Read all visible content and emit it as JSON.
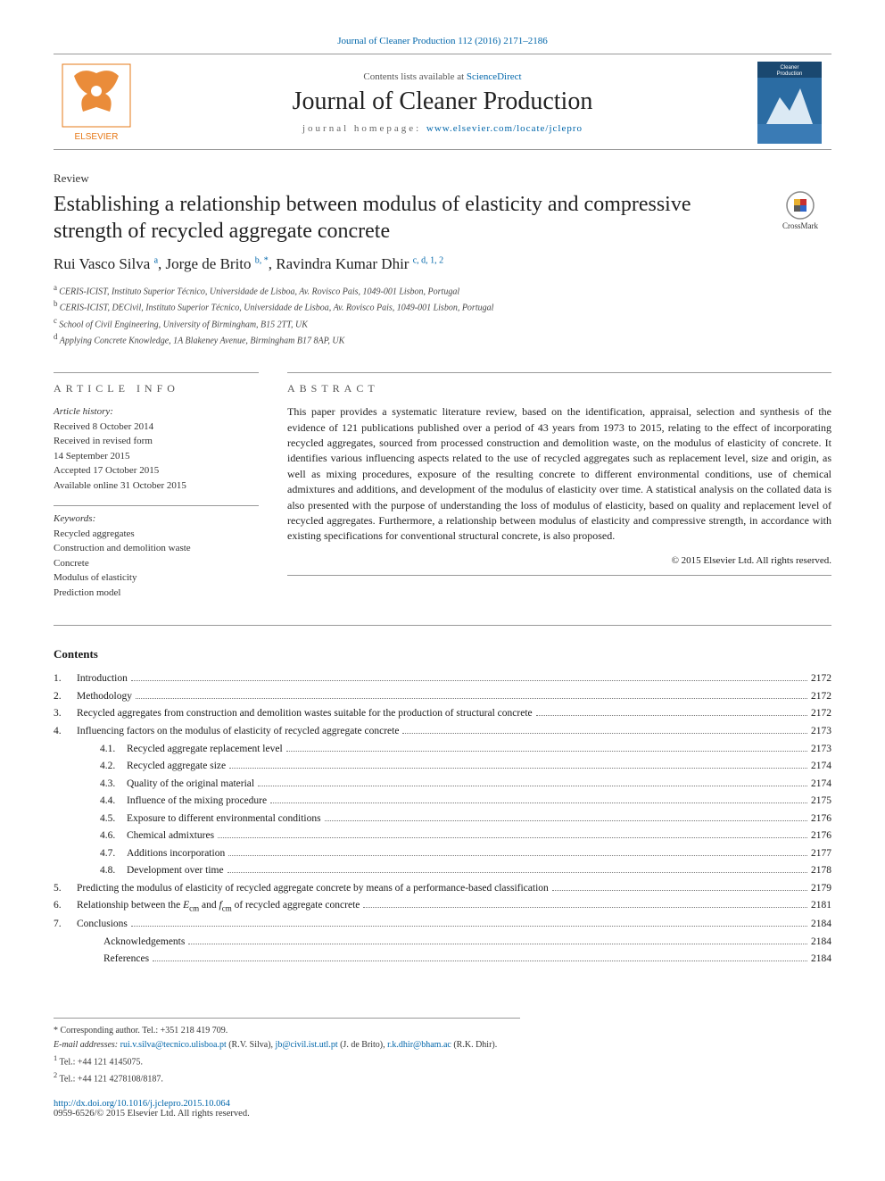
{
  "journal_ref": "Journal of Cleaner Production 112 (2016) 2171–2186",
  "masthead": {
    "sd_prefix": "Contents lists available at ",
    "sd_link": "ScienceDirect",
    "journal_title": "Journal of Cleaner Production",
    "homepage_label": "journal homepage: ",
    "homepage_url": "www.elsevier.com/locate/jclepro",
    "publisher": "ELSEVIER"
  },
  "article_type": "Review",
  "title": "Establishing a relationship between modulus of elasticity and compressive strength of recycled aggregate concrete",
  "crossmark_label": "CrossMark",
  "authors": [
    {
      "name": "Rui Vasco Silva",
      "sup": "a"
    },
    {
      "name": "Jorge de Brito",
      "sup": "b, *"
    },
    {
      "name": "Ravindra Kumar Dhir",
      "sup": "c, d, 1, 2"
    }
  ],
  "affiliations": [
    {
      "sup": "a",
      "text": "CERIS-ICIST, Instituto Superior Técnico, Universidade de Lisboa, Av. Rovisco Pais, 1049-001 Lisbon, Portugal"
    },
    {
      "sup": "b",
      "text": "CERIS-ICIST, DECivil, Instituto Superior Técnico, Universidade de Lisboa, Av. Rovisco Pais, 1049-001 Lisbon, Portugal"
    },
    {
      "sup": "c",
      "text": "School of Civil Engineering, University of Birmingham, B15 2TT, UK"
    },
    {
      "sup": "d",
      "text": "Applying Concrete Knowledge, 1A Blakeney Avenue, Birmingham B17 8AP, UK"
    }
  ],
  "article_info": {
    "head": "ARTICLE INFO",
    "history_label": "Article history:",
    "history": [
      "Received 8 October 2014",
      "Received in revised form",
      "14 September 2015",
      "Accepted 17 October 2015",
      "Available online 31 October 2015"
    ],
    "keywords_label": "Keywords:",
    "keywords": [
      "Recycled aggregates",
      "Construction and demolition waste",
      "Concrete",
      "Modulus of elasticity",
      "Prediction model"
    ]
  },
  "abstract": {
    "head": "ABSTRACT",
    "text": "This paper provides a systematic literature review, based on the identification, appraisal, selection and synthesis of the evidence of 121 publications published over a period of 43 years from 1973 to 2015, relating to the effect of incorporating recycled aggregates, sourced from processed construction and demolition waste, on the modulus of elasticity of concrete. It identifies various influencing aspects related to the use of recycled aggregates such as replacement level, size and origin, as well as mixing procedures, exposure of the resulting concrete to different environmental conditions, use of chemical admixtures and additions, and development of the modulus of elasticity over time. A statistical analysis on the collated data is also presented with the purpose of understanding the loss of modulus of elasticity, based on quality and replacement level of recycled aggregates. Furthermore, a relationship between modulus of elasticity and compressive strength, in accordance with existing specifications for conventional structural concrete, is also proposed.",
    "copyright": "© 2015 Elsevier Ltd. All rights reserved."
  },
  "contents_head": "Contents",
  "contents": [
    {
      "num": "1.",
      "sub": "",
      "title": "Introduction",
      "page": "2172"
    },
    {
      "num": "2.",
      "sub": "",
      "title": "Methodology",
      "page": "2172"
    },
    {
      "num": "3.",
      "sub": "",
      "title": "Recycled aggregates from construction and demolition wastes suitable for the production of structural concrete",
      "page": "2172"
    },
    {
      "num": "4.",
      "sub": "",
      "title": "Influencing factors on the modulus of elasticity of recycled aggregate concrete",
      "page": "2173"
    },
    {
      "num": "",
      "sub": "4.1.",
      "title": "Recycled aggregate replacement level",
      "page": "2173"
    },
    {
      "num": "",
      "sub": "4.2.",
      "title": "Recycled aggregate size",
      "page": "2174"
    },
    {
      "num": "",
      "sub": "4.3.",
      "title": "Quality of the original material",
      "page": "2174"
    },
    {
      "num": "",
      "sub": "4.4.",
      "title": "Influence of the mixing procedure",
      "page": "2175"
    },
    {
      "num": "",
      "sub": "4.5.",
      "title": "Exposure to different environmental conditions",
      "page": "2176"
    },
    {
      "num": "",
      "sub": "4.6.",
      "title": "Chemical admixtures",
      "page": "2176"
    },
    {
      "num": "",
      "sub": "4.7.",
      "title": "Additions incorporation",
      "page": "2177"
    },
    {
      "num": "",
      "sub": "4.8.",
      "title": "Development over time",
      "page": "2178"
    },
    {
      "num": "5.",
      "sub": "",
      "title": "Predicting the modulus of elasticity of recycled aggregate concrete by means of a performance-based classification",
      "page": "2179"
    },
    {
      "num": "6.",
      "sub": "",
      "title": "Relationship between the E_cm and f_cm of recycled aggregate concrete",
      "page": "2181"
    },
    {
      "num": "7.",
      "sub": "",
      "title": "Conclusions",
      "page": "2184"
    },
    {
      "num": "",
      "sub": "",
      "title": "Acknowledgements",
      "page": "2184"
    },
    {
      "num": "",
      "sub": "",
      "title": "References",
      "page": "2184"
    }
  ],
  "footnotes": {
    "corresponding": "* Corresponding author. Tel.: +351 218 419 709.",
    "email_label": "E-mail addresses: ",
    "emails": [
      {
        "addr": "rui.v.silva@tecnico.ulisboa.pt",
        "who": " (R.V. Silva), "
      },
      {
        "addr": "jb@civil.ist.utl.pt",
        "who": " (J. de Brito), "
      },
      {
        "addr": "r.k.dhir@bham.ac",
        "who": " (R.K. Dhir)."
      }
    ],
    "tels": [
      {
        "sup": "1",
        "text": " Tel.: +44 121 4145075."
      },
      {
        "sup": "2",
        "text": " Tel.: +44 121 4278108/8187."
      }
    ]
  },
  "doi": "http://dx.doi.org/10.1016/j.jclepro.2015.10.064",
  "bottom_copy": "0959-6526/© 2015 Elsevier Ltd. All rights reserved.",
  "colors": {
    "link": "#0066aa",
    "text": "#1a1a1a",
    "rule": "#999999"
  }
}
